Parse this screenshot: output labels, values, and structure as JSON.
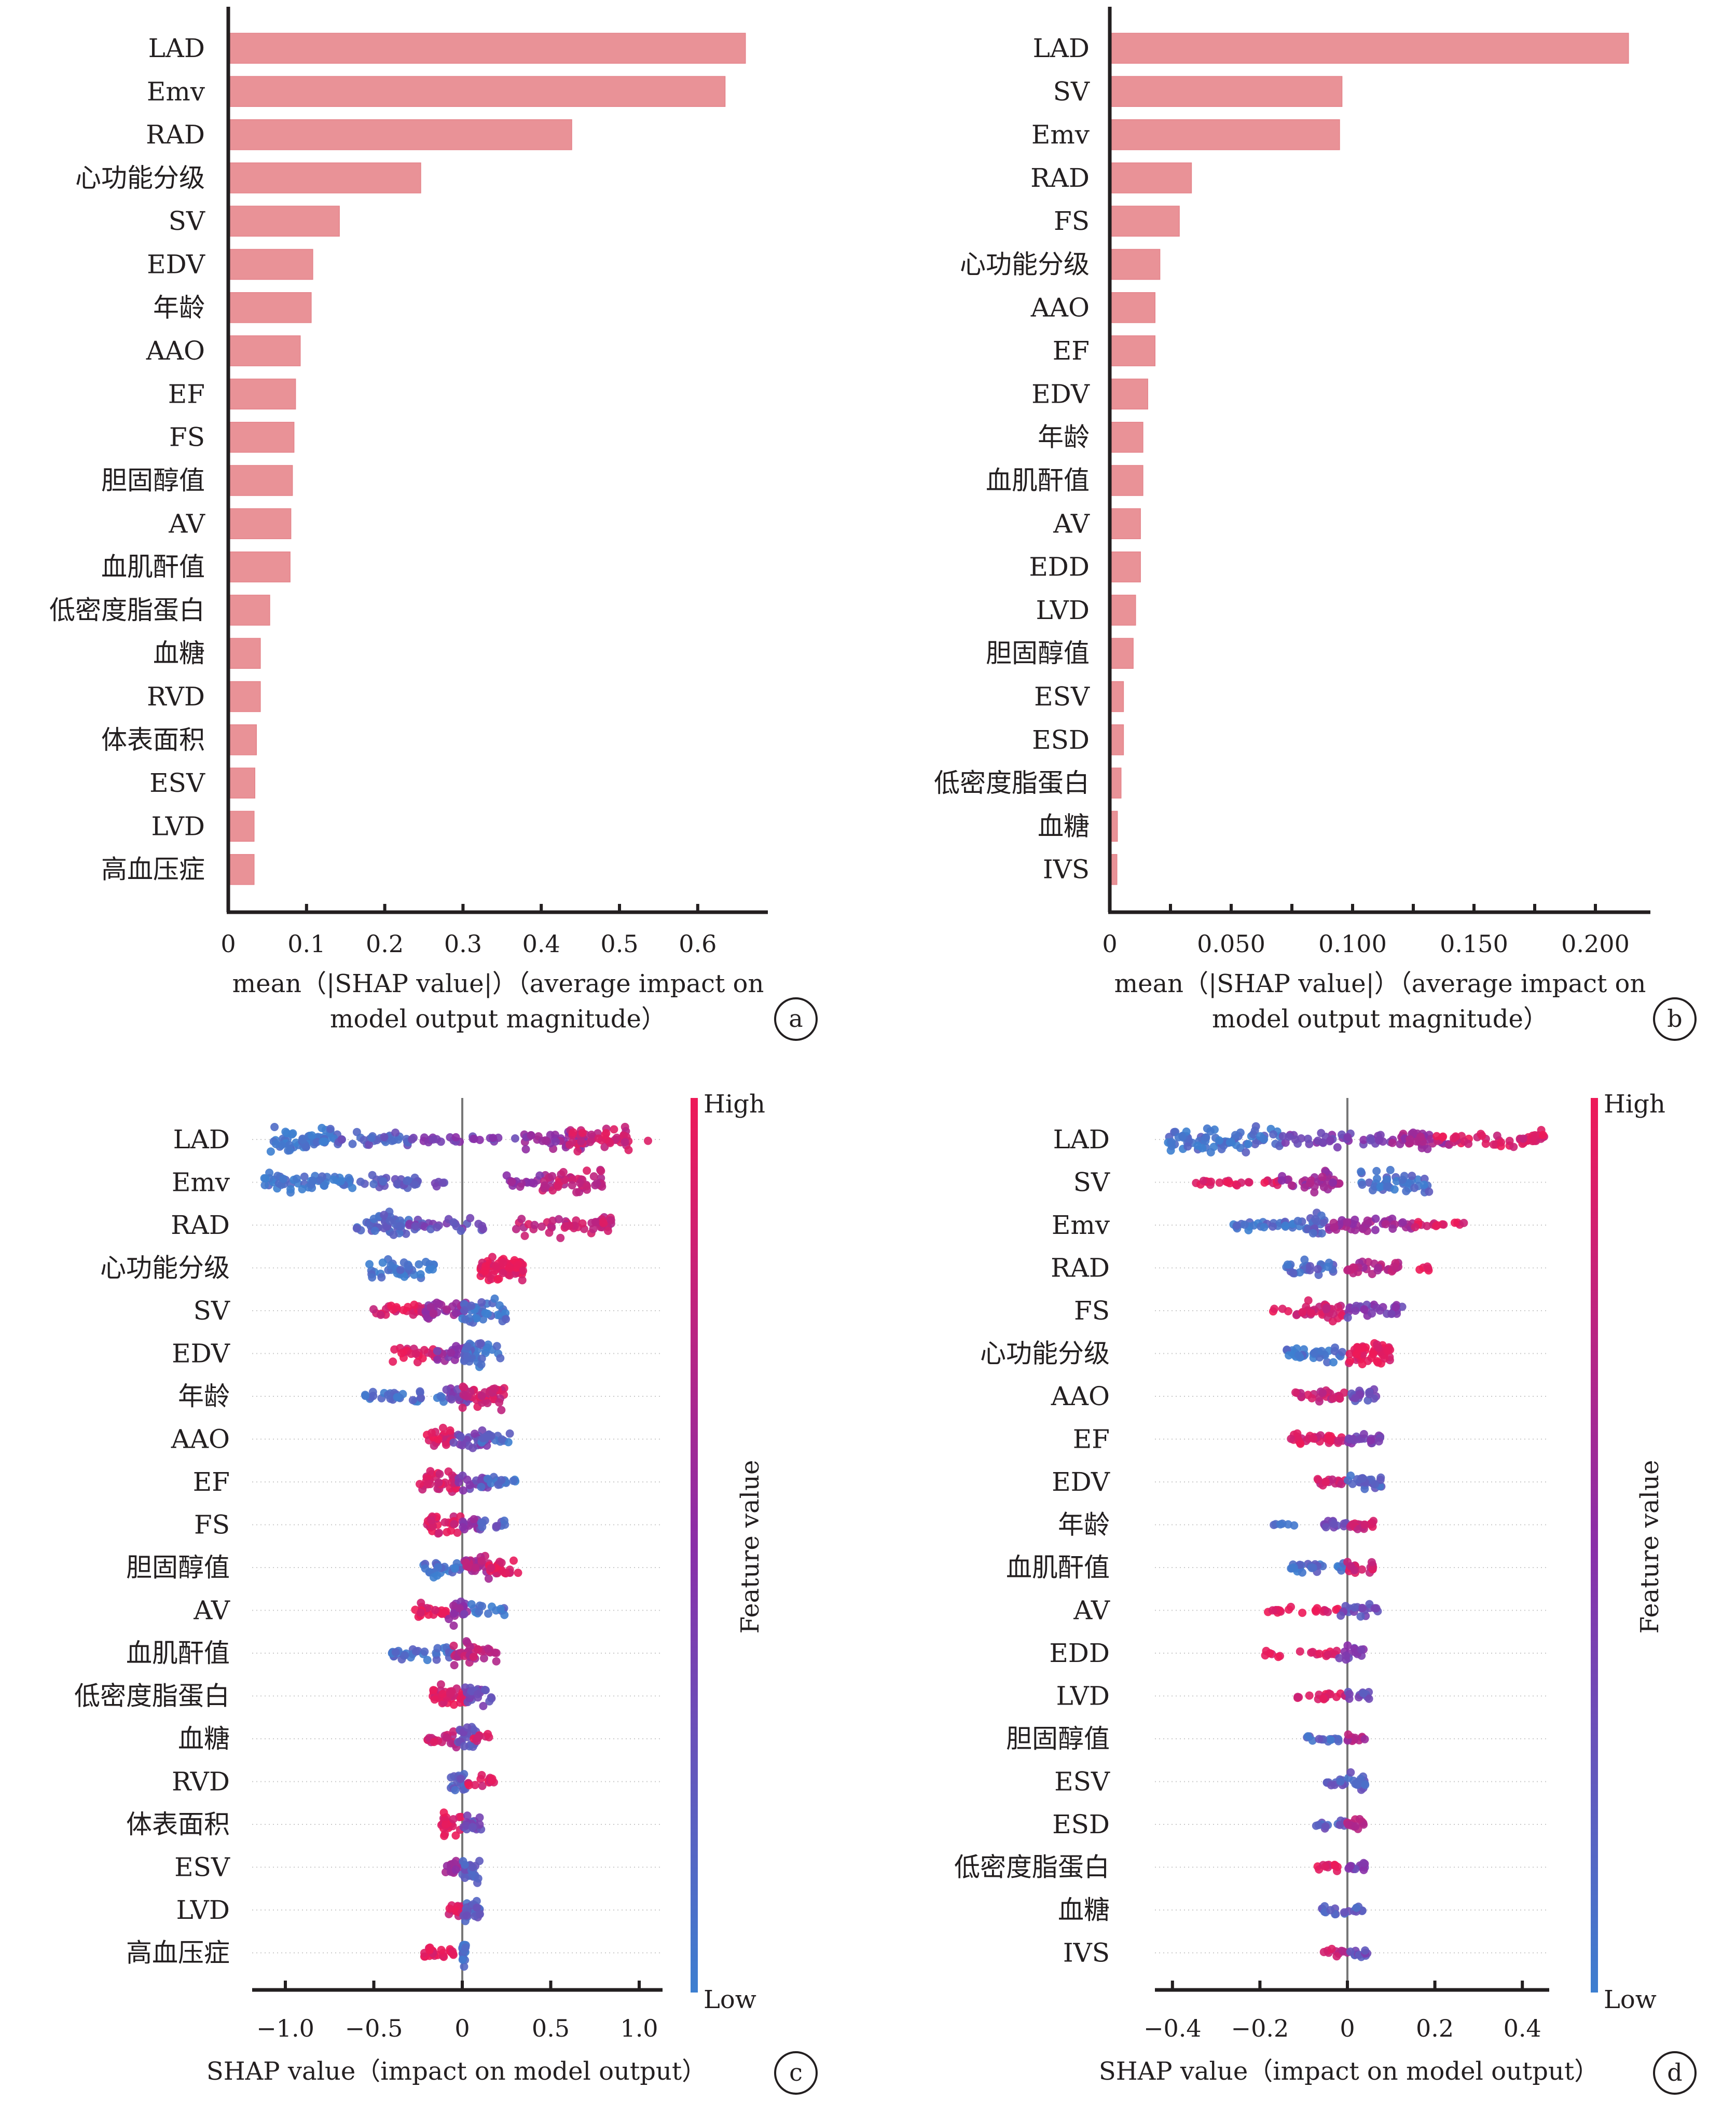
{
  "colors": {
    "bar": "#e99297",
    "high": "#ee1a58",
    "mid": "#8a2ea8",
    "low": "#3d7fd0"
  },
  "chart_data": [
    {
      "panel": "a",
      "type": "bar",
      "orientation": "horizontal",
      "categories": [
        "LAD",
        "Emv",
        "RAD",
        "心功能分级",
        "SV",
        "EDV",
        "年龄",
        "AAO",
        "EF",
        "FS",
        "胆固醇值",
        "AV",
        "血肌酐值",
        "低密度脂蛋白",
        "血糖",
        "RVD",
        "体表面积",
        "ESV",
        "LVD",
        "高血压症"
      ],
      "values": [
        0.659,
        0.633,
        0.437,
        0.244,
        0.14,
        0.106,
        0.104,
        0.09,
        0.084,
        0.082,
        0.08,
        0.078,
        0.077,
        0.051,
        0.039,
        0.039,
        0.034,
        0.032,
        0.031,
        0.031
      ],
      "xlim": [
        0,
        0.69
      ],
      "xticks": [
        0,
        0.1,
        0.2,
        0.3,
        0.4,
        0.5,
        0.6
      ],
      "xtick_labels": [
        "0",
        "0.1",
        "0.2",
        "0.3",
        "0.4",
        "0.5",
        "0.6"
      ],
      "xlabel_lines": [
        "mean（|SHAP value|）（average impact on",
        "model output magnitude）"
      ],
      "badge": "a",
      "grid": false
    },
    {
      "panel": "b",
      "type": "bar",
      "orientation": "horizontal",
      "categories": [
        "LAD",
        "SV",
        "Emv",
        "RAD",
        "FS",
        "心功能分级",
        "AAO",
        "EF",
        "EDV",
        "年龄",
        "血肌酐值",
        "AV",
        "EDD",
        "LVD",
        "胆固醇值",
        "ESV",
        "ESD",
        "低密度脂蛋白",
        "血糖",
        "IVS"
      ],
      "values": [
        0.213,
        0.095,
        0.094,
        0.033,
        0.028,
        0.02,
        0.018,
        0.018,
        0.015,
        0.013,
        0.013,
        0.012,
        0.012,
        0.01,
        0.009,
        0.005,
        0.005,
        0.004,
        0.0025,
        0.0023
      ],
      "xlim": [
        0,
        0.2225
      ],
      "xticks": [
        0,
        0.05,
        0.1,
        0.15,
        0.2
      ],
      "minor_ticks": [
        0.025,
        0.075,
        0.125,
        0.175
      ],
      "xtick_labels": [
        "0",
        "0.050",
        "0.100",
        "0.150",
        "0.200"
      ],
      "xlabel_lines": [
        "mean（|SHAP value|）（average impact on",
        "model output magnitude）"
      ],
      "badge": "b",
      "grid": false
    },
    {
      "panel": "c",
      "type": "scatter",
      "subtype": "beeswarm",
      "categories": [
        "LAD",
        "Emv",
        "RAD",
        "心功能分级",
        "SV",
        "EDV",
        "年龄",
        "AAO",
        "EF",
        "FS",
        "胆固醇值",
        "AV",
        "血肌酐值",
        "低密度脂蛋白",
        "血糖",
        "RVD",
        "体表面积",
        "ESV",
        "LVD",
        "高血压症"
      ],
      "xlim": [
        -1.2,
        1.15
      ],
      "xticks": [
        -1.0,
        -0.5,
        0,
        0.5,
        1.0
      ],
      "xtick_labels": [
        "−1.0",
        "−0.5",
        "0",
        "0.5",
        "1.0"
      ],
      "xlabel": "SHAP value（impact on model output）",
      "colorbar": {
        "label": "Feature value",
        "high": "High",
        "low": "Low"
      },
      "badge": "c",
      "grid": true,
      "segments": [
        [
          [
            -1.1,
            -0.7,
            0.05,
            60,
            1.0
          ],
          [
            -0.7,
            -0.3,
            0.2,
            30,
            0.6
          ],
          [
            -0.3,
            0.3,
            0.4,
            25,
            0.35
          ],
          [
            0.35,
            0.7,
            0.55,
            40,
            0.9
          ],
          [
            0.6,
            0.95,
            0.85,
            45,
            1.0
          ],
          [
            1.05,
            1.05,
            0.95,
            1,
            0.3
          ]
        ],
        [
          [
            -1.12,
            -0.6,
            0.05,
            55,
            0.7
          ],
          [
            -0.6,
            -0.25,
            0.2,
            30,
            0.6
          ],
          [
            -0.18,
            -0.08,
            0.3,
            5,
            0.3
          ],
          [
            0.25,
            0.5,
            0.55,
            20,
            0.6
          ],
          [
            0.45,
            0.8,
            0.8,
            45,
            1.0
          ]
        ],
        [
          [
            -0.6,
            -0.3,
            0.15,
            45,
            1.0
          ],
          [
            -0.3,
            0.12,
            0.3,
            30,
            0.5
          ],
          [
            0.3,
            0.85,
            0.8,
            50,
            0.9
          ]
        ],
        [
          [
            -0.55,
            -0.15,
            0.05,
            40,
            0.8
          ],
          [
            0.1,
            0.35,
            0.97,
            70,
            1.0
          ]
        ],
        [
          [
            -0.52,
            -0.2,
            0.9,
            30,
            0.5
          ],
          [
            -0.25,
            0.02,
            0.55,
            30,
            0.8
          ],
          [
            0.0,
            0.25,
            0.1,
            40,
            1.0
          ]
        ],
        [
          [
            -0.4,
            -0.12,
            0.9,
            25,
            0.6
          ],
          [
            -0.15,
            0.05,
            0.5,
            25,
            0.8
          ],
          [
            0.0,
            0.22,
            0.1,
            35,
            1.0
          ]
        ],
        [
          [
            -0.55,
            -0.1,
            0.1,
            30,
            0.4
          ],
          [
            -0.1,
            0.05,
            0.4,
            20,
            0.6
          ],
          [
            0.0,
            0.25,
            0.85,
            40,
            1.0
          ]
        ],
        [
          [
            -0.2,
            -0.05,
            0.9,
            25,
            0.8
          ],
          [
            -0.05,
            0.15,
            0.35,
            25,
            1.0
          ],
          [
            0.1,
            0.3,
            0.1,
            15,
            0.5
          ]
        ],
        [
          [
            -0.25,
            -0.03,
            0.9,
            35,
            1.0
          ],
          [
            -0.03,
            0.15,
            0.4,
            25,
            0.9
          ],
          [
            0.1,
            0.3,
            0.1,
            15,
            0.5
          ]
        ],
        [
          [
            -0.2,
            0.0,
            0.9,
            30,
            1.0
          ],
          [
            0.0,
            0.1,
            0.5,
            15,
            0.8
          ],
          [
            0.1,
            0.25,
            0.2,
            12,
            0.5
          ]
        ],
        [
          [
            -0.22,
            0.0,
            0.1,
            25,
            0.8
          ],
          [
            0.0,
            0.2,
            0.7,
            30,
            1.0
          ],
          [
            0.15,
            0.35,
            0.95,
            20,
            0.6
          ]
        ],
        [
          [
            -0.28,
            -0.08,
            0.95,
            25,
            0.6
          ],
          [
            -0.08,
            0.03,
            0.5,
            20,
            1.0
          ],
          [
            0.05,
            0.25,
            0.1,
            15,
            0.5
          ]
        ],
        [
          [
            -0.4,
            -0.05,
            0.1,
            35,
            0.5
          ],
          [
            -0.05,
            0.2,
            0.75,
            35,
            1.0
          ]
        ],
        [
          [
            -0.17,
            0.02,
            0.9,
            35,
            1.0
          ],
          [
            0.0,
            0.18,
            0.35,
            25,
            0.8
          ]
        ],
        [
          [
            -0.2,
            -0.02,
            0.8,
            20,
            0.6
          ],
          [
            -0.03,
            0.08,
            0.3,
            25,
            1.0
          ],
          [
            0.05,
            0.17,
            0.9,
            10,
            0.4
          ]
        ],
        [
          [
            -0.07,
            0.03,
            0.2,
            20,
            1.0
          ],
          [
            0.03,
            0.18,
            0.9,
            15,
            0.5
          ]
        ],
        [
          [
            -0.12,
            0.0,
            0.95,
            25,
            1.0
          ],
          [
            0.0,
            0.12,
            0.3,
            20,
            0.8
          ]
        ],
        [
          [
            -0.1,
            0.0,
            0.6,
            15,
            0.8
          ],
          [
            0.0,
            0.1,
            0.2,
            25,
            1.0
          ]
        ],
        [
          [
            -0.08,
            0.0,
            0.9,
            15,
            0.8
          ],
          [
            0.0,
            0.1,
            0.2,
            25,
            1.0
          ]
        ],
        [
          [
            -0.22,
            -0.05,
            0.98,
            25,
            0.4
          ],
          [
            0.0,
            0.02,
            0.05,
            20,
            1.0
          ]
        ]
      ]
    },
    {
      "panel": "d",
      "type": "scatter",
      "subtype": "beeswarm",
      "categories": [
        "LAD",
        "SV",
        "Emv",
        "RAD",
        "FS",
        "心功能分级",
        "AAO",
        "EF",
        "EDV",
        "年龄",
        "血肌酐值",
        "AV",
        "EDD",
        "LVD",
        "胆固醇值",
        "ESV",
        "ESD",
        "低密度脂蛋白",
        "血糖",
        "IVS"
      ],
      "xlim": [
        -0.44,
        0.46
      ],
      "xticks": [
        -0.4,
        -0.2,
        0,
        0.2,
        0.4
      ],
      "xtick_labels": [
        "−0.4",
        "−0.2",
        "0",
        "0.2",
        "0.4"
      ],
      "xlabel": "SHAP value（impact on model output）",
      "colorbar": {
        "label": "Feature value",
        "high": "High",
        "low": "Low"
      },
      "badge": "d",
      "grid": true,
      "segments": [
        [
          [
            -0.41,
            -0.15,
            0.08,
            80,
            1.0
          ],
          [
            -0.15,
            0.1,
            0.4,
            40,
            0.6
          ],
          [
            0.1,
            0.25,
            0.6,
            40,
            0.8
          ],
          [
            0.2,
            0.45,
            0.9,
            50,
            0.8
          ]
        ],
        [
          [
            -0.35,
            -0.15,
            0.95,
            25,
            0.3
          ],
          [
            -0.15,
            0.0,
            0.6,
            35,
            0.8
          ],
          [
            0.03,
            0.19,
            0.1,
            45,
            1.0
          ]
        ],
        [
          [
            -0.27,
            -0.1,
            0.1,
            30,
            0.4
          ],
          [
            -0.1,
            -0.05,
            0.15,
            20,
            1.0
          ],
          [
            -0.05,
            0.15,
            0.6,
            45,
            0.7
          ],
          [
            0.15,
            0.28,
            0.9,
            15,
            0.3
          ]
        ],
        [
          [
            -0.14,
            -0.02,
            0.15,
            30,
            0.6
          ],
          [
            0.0,
            0.12,
            0.7,
            30,
            0.6
          ],
          [
            0.16,
            0.2,
            0.95,
            5,
            0.2
          ]
        ],
        [
          [
            -0.17,
            -0.1,
            0.95,
            5,
            0.2
          ],
          [
            -0.12,
            0.0,
            0.85,
            35,
            0.8
          ],
          [
            0.0,
            0.13,
            0.4,
            30,
            0.6
          ]
        ],
        [
          [
            -0.14,
            -0.01,
            0.05,
            35,
            0.6
          ],
          [
            0.0,
            0.1,
            0.97,
            50,
            1.0
          ]
        ],
        [
          [
            -0.12,
            0.0,
            0.8,
            25,
            0.5
          ],
          [
            0.0,
            0.07,
            0.3,
            20,
            0.6
          ]
        ],
        [
          [
            -0.13,
            0.0,
            0.9,
            35,
            0.5
          ],
          [
            0.0,
            0.08,
            0.4,
            20,
            0.5
          ]
        ],
        [
          [
            -0.07,
            0.0,
            0.85,
            15,
            0.4
          ],
          [
            0.0,
            0.08,
            0.15,
            25,
            0.6
          ]
        ],
        [
          [
            -0.18,
            -0.06,
            0.1,
            6,
            0.15
          ],
          [
            -0.06,
            0.0,
            0.3,
            15,
            0.4
          ],
          [
            0.0,
            0.06,
            0.85,
            20,
            0.5
          ]
        ],
        [
          [
            -0.13,
            0.0,
            0.1,
            30,
            0.4
          ],
          [
            0.0,
            0.06,
            0.85,
            20,
            0.5
          ]
        ],
        [
          [
            -0.2,
            -0.02,
            0.95,
            20,
            0.3
          ],
          [
            -0.02,
            0.07,
            0.3,
            20,
            0.6
          ]
        ],
        [
          [
            -0.19,
            -0.02,
            0.95,
            18,
            0.3
          ],
          [
            -0.02,
            0.04,
            0.4,
            15,
            0.6
          ]
        ],
        [
          [
            -0.12,
            0.0,
            0.9,
            18,
            0.3
          ],
          [
            0.0,
            0.05,
            0.3,
            12,
            0.5
          ]
        ],
        [
          [
            -0.1,
            0.0,
            0.15,
            15,
            0.3
          ],
          [
            0.0,
            0.04,
            0.7,
            12,
            0.5
          ]
        ],
        [
          [
            -0.05,
            0.05,
            0.2,
            25,
            0.6
          ]
        ],
        [
          [
            -0.08,
            0.0,
            0.2,
            12,
            0.3
          ],
          [
            0.0,
            0.04,
            0.7,
            12,
            0.5
          ]
        ],
        [
          [
            -0.07,
            0.0,
            0.95,
            12,
            0.3
          ],
          [
            0.0,
            0.04,
            0.4,
            12,
            0.4
          ]
        ],
        [
          [
            -0.06,
            0.04,
            0.2,
            20,
            0.4
          ]
        ],
        [
          [
            -0.06,
            0.0,
            0.8,
            10,
            0.3
          ],
          [
            0.0,
            0.05,
            0.3,
            12,
            0.4
          ]
        ]
      ]
    }
  ]
}
